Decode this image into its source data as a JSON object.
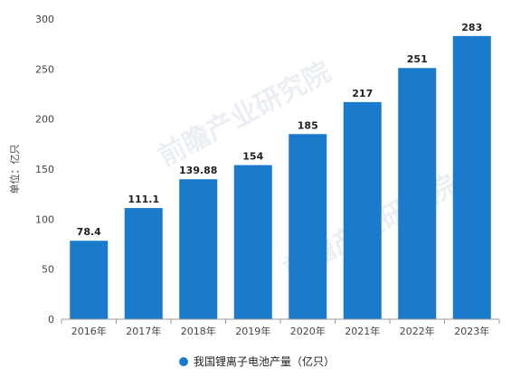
{
  "chart_data": {
    "type": "bar",
    "categories": [
      "2016年",
      "2017年",
      "2018年",
      "2019年",
      "2020年",
      "2021年",
      "2022年",
      "2023年"
    ],
    "series": [
      {
        "name": "我国锂离子电池产量（亿只）",
        "values": [
          78.4,
          111.1,
          139.88,
          154,
          185,
          217,
          251,
          283
        ],
        "color": "#1a7bcc"
      }
    ],
    "data_labels": [
      "78.4",
      "111.1",
      "139.88",
      "154",
      "185",
      "217",
      "251",
      "283"
    ],
    "ylabel": "单位：亿只",
    "xlabel": "",
    "ylim": [
      0,
      300
    ],
    "yticks": [
      0,
      50,
      100,
      150,
      200,
      250,
      300
    ],
    "grid": false,
    "legend_position": "bottom-center"
  },
  "watermark": {
    "text": "前瞻产业研究院"
  }
}
